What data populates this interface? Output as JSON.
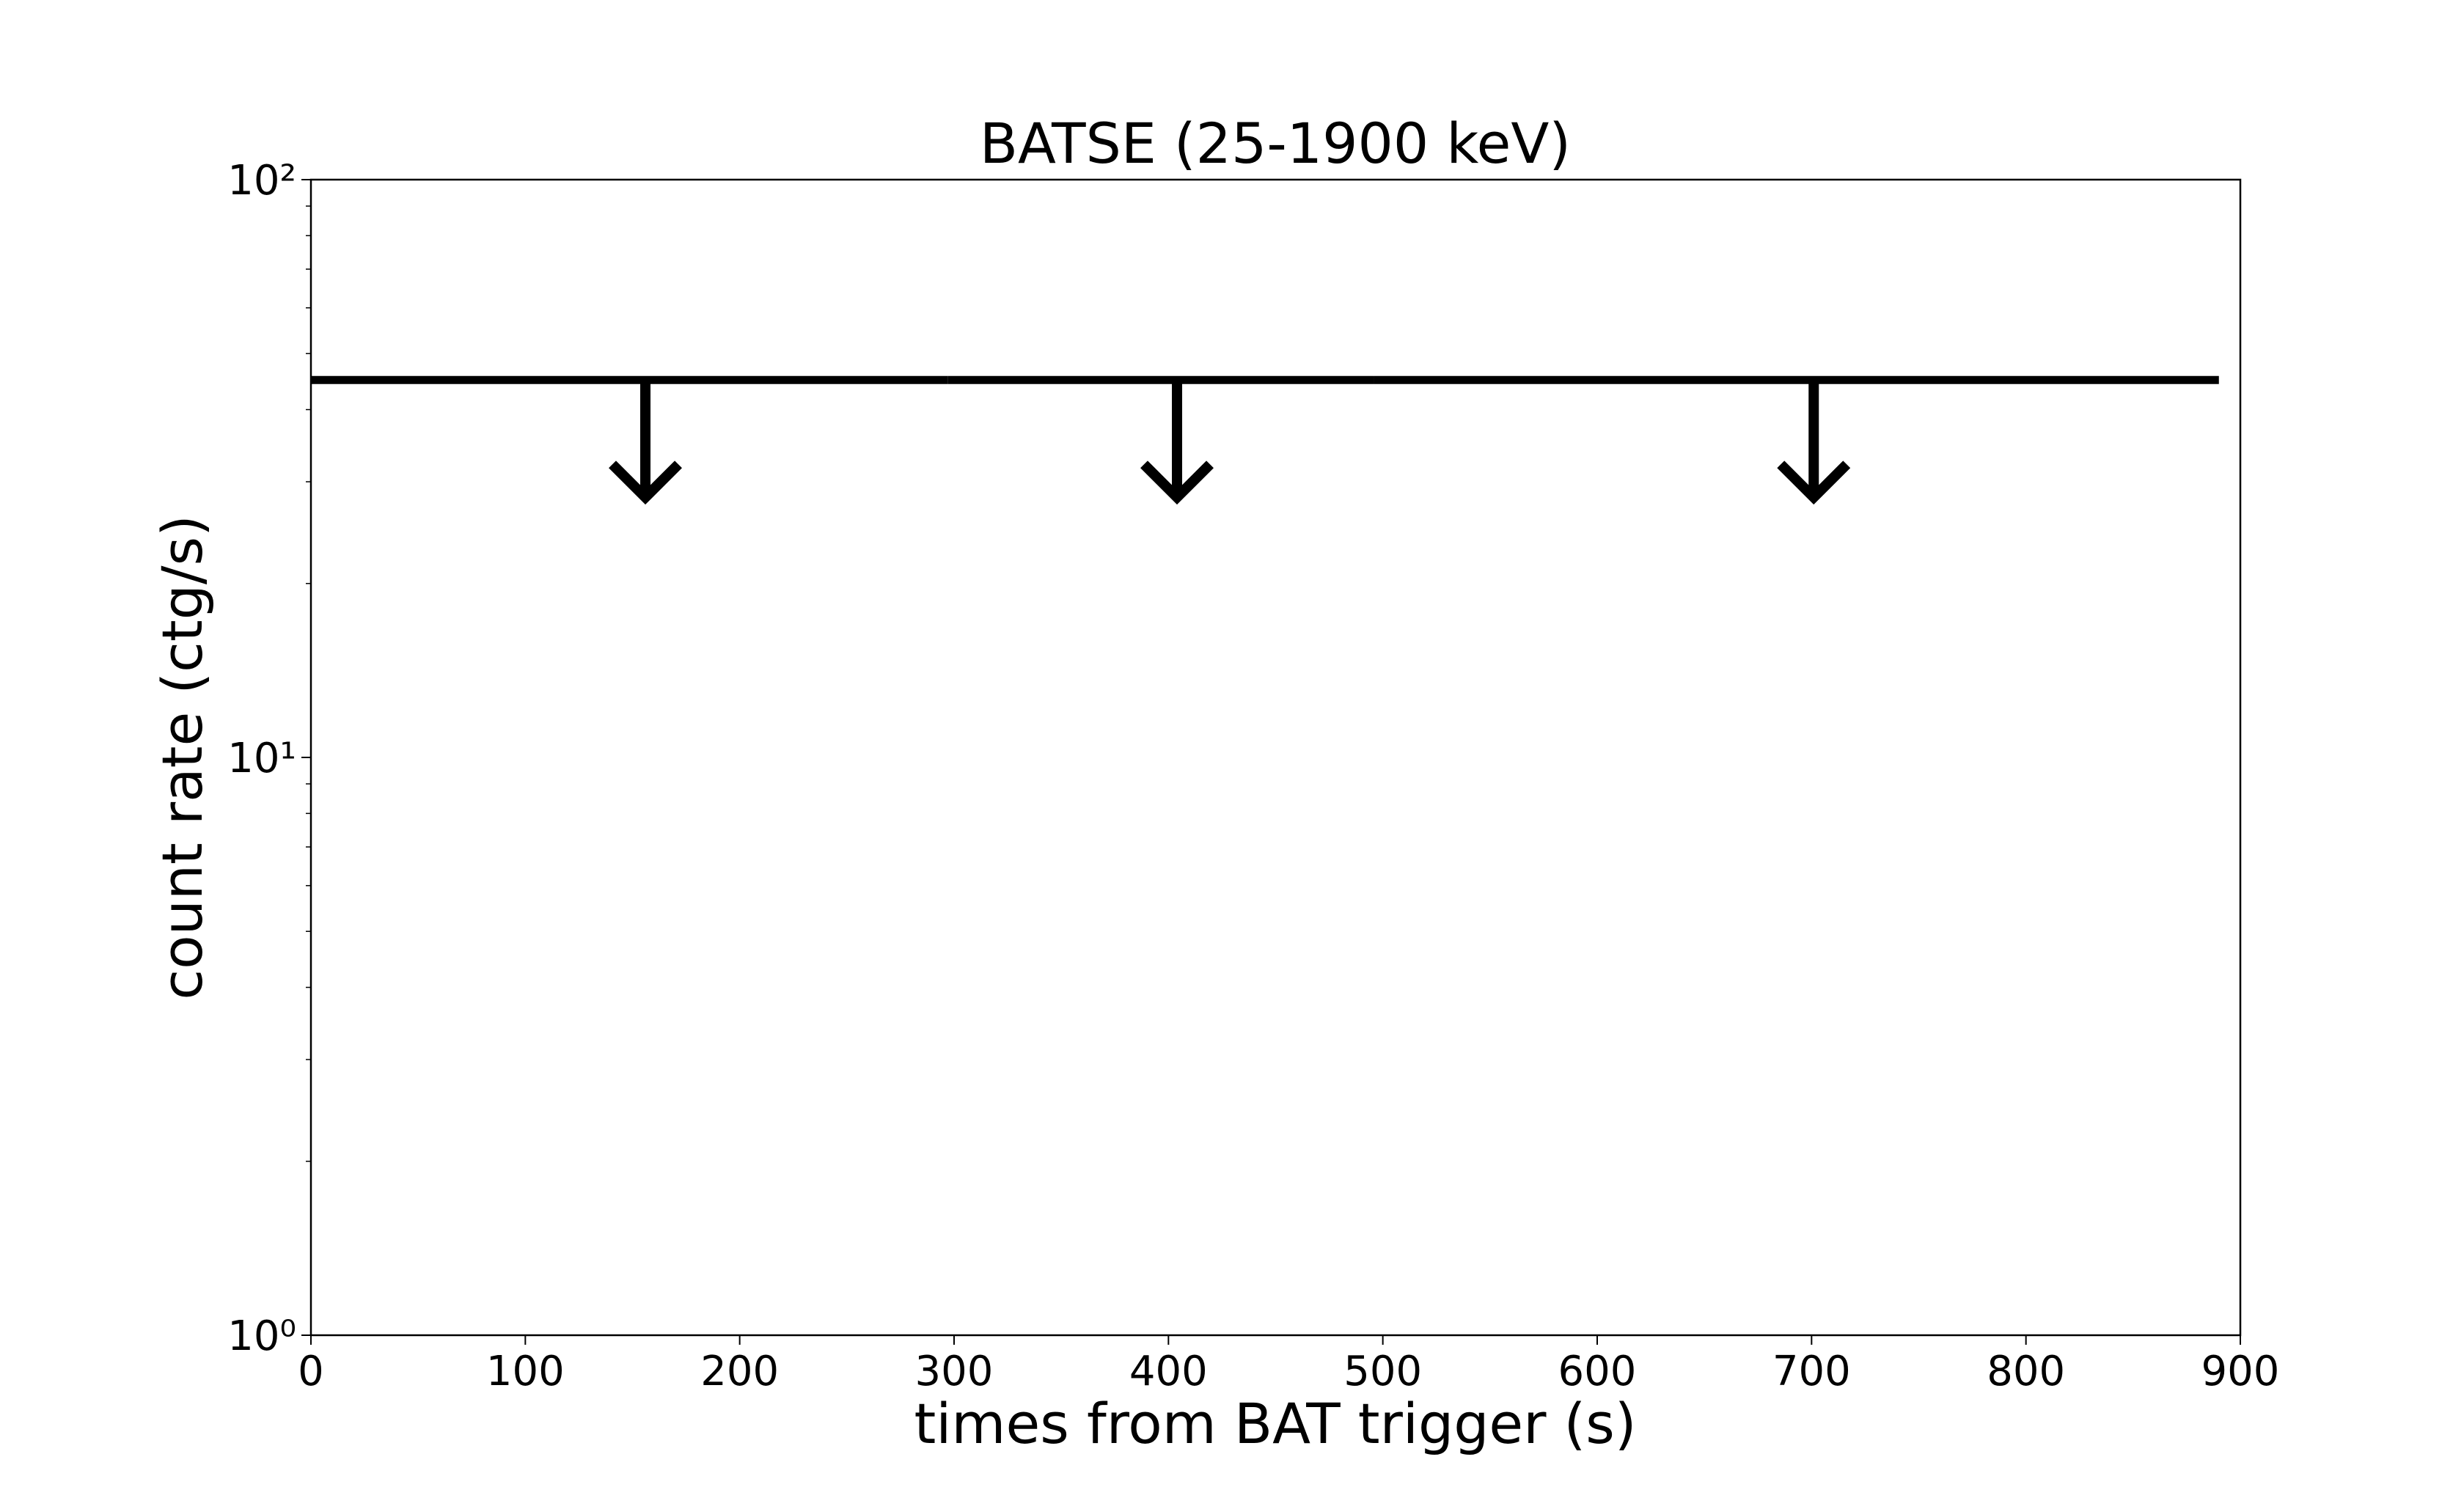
{
  "chart_data": {
    "type": "upper_limit",
    "title": "BATSE (25-1900 keV)",
    "x_label": "times from BAT trigger (s)",
    "y_label": "count rate (ctg/s)",
    "xlim": [
      0,
      900
    ],
    "xticks": [
      0,
      100,
      200,
      300,
      400,
      500,
      600,
      700,
      800,
      900
    ],
    "ylim": [
      1,
      100
    ],
    "y_scale": "log",
    "yticks": [
      {
        "value": 1,
        "label": "10⁰"
      },
      {
        "value": 10,
        "label": "10¹"
      },
      {
        "value": 100,
        "label": "10²"
      }
    ],
    "series": [
      {
        "color": "#000000",
        "x": [
          156,
          404,
          701
        ],
        "x_start": [
          0,
          297,
          496
        ],
        "x_end": [
          297,
          496,
          890
        ],
        "values": [
          45,
          45,
          45
        ]
      }
    ]
  }
}
